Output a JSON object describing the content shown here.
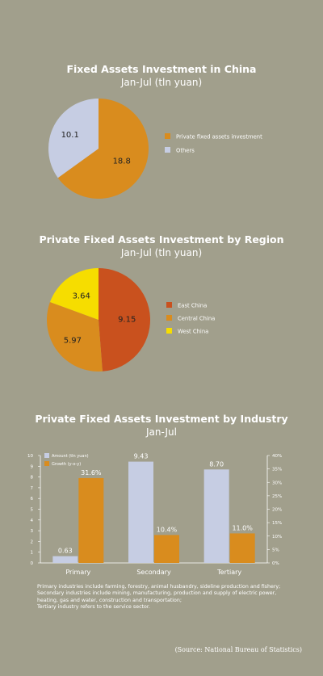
{
  "chart_data": [
    {
      "type": "pie",
      "title": "Fixed Assets Investment in China",
      "subtitle": "Jan-Jul (tln yuan)",
      "slices": [
        {
          "label": "Private fixed assets investment",
          "value": 18.8,
          "value_label": "18.8",
          "color": "#d98c1e"
        },
        {
          "label": "Others",
          "value": 10.1,
          "value_label": "10.1",
          "color": "#c6cde3"
        }
      ],
      "legend_position": "right"
    },
    {
      "type": "pie",
      "title": "Private Fixed Assets Investment by Region",
      "subtitle": "Jan-Jul (tln yuan)",
      "slices": [
        {
          "label": "East China",
          "value": 9.15,
          "value_label": "9.15",
          "color": "#c9511e"
        },
        {
          "label": "Central China",
          "value": 5.97,
          "value_label": "5.97",
          "color": "#d98c1e"
        },
        {
          "label": "West China",
          "value": 3.64,
          "value_label": "3.64",
          "color": "#f6dd00"
        }
      ],
      "legend_position": "right"
    },
    {
      "type": "bar",
      "title": "Private Fixed Assets Investment by Industry",
      "subtitle": "Jan-Jul",
      "categories": [
        "Primary",
        "Secondary",
        "Tertiary"
      ],
      "series": [
        {
          "name": "Amount (tln yuan)",
          "values": [
            0.63,
            9.43,
            8.7
          ],
          "labels": [
            "0.63",
            "9.43",
            "8.70"
          ],
          "axis": "left",
          "color": "#c6cde3"
        },
        {
          "name": "Growth (y-o-y)",
          "values": [
            31.6,
            10.4,
            11.0
          ],
          "labels": [
            "31.6%",
            "10.4%",
            "11.0%"
          ],
          "axis": "right",
          "color": "#d98c1e"
        }
      ],
      "y_left": {
        "min": 0,
        "max": 10,
        "ticks": [
          "0",
          "1",
          "2",
          "3",
          "4",
          "5",
          "6",
          "7",
          "8",
          "9",
          "10"
        ]
      },
      "y_right": {
        "min": 0,
        "max": 40,
        "ticks": [
          "0%",
          "5%",
          "10%",
          "15%",
          "20%",
          "25%",
          "30%",
          "35%",
          "40%"
        ]
      },
      "legend_position": "top-left",
      "notes": [
        "Primary industries include farming, forestry, animal husbandry, sideline production and fishery;",
        "Secondary industries include mining, manufacturing, production and supply of electric power,",
        "heating, gas and water, construction and transportation;",
        "Tertiary industry refers to the service sector."
      ]
    }
  ],
  "source": "(Source: National Bureau of Statistics)"
}
